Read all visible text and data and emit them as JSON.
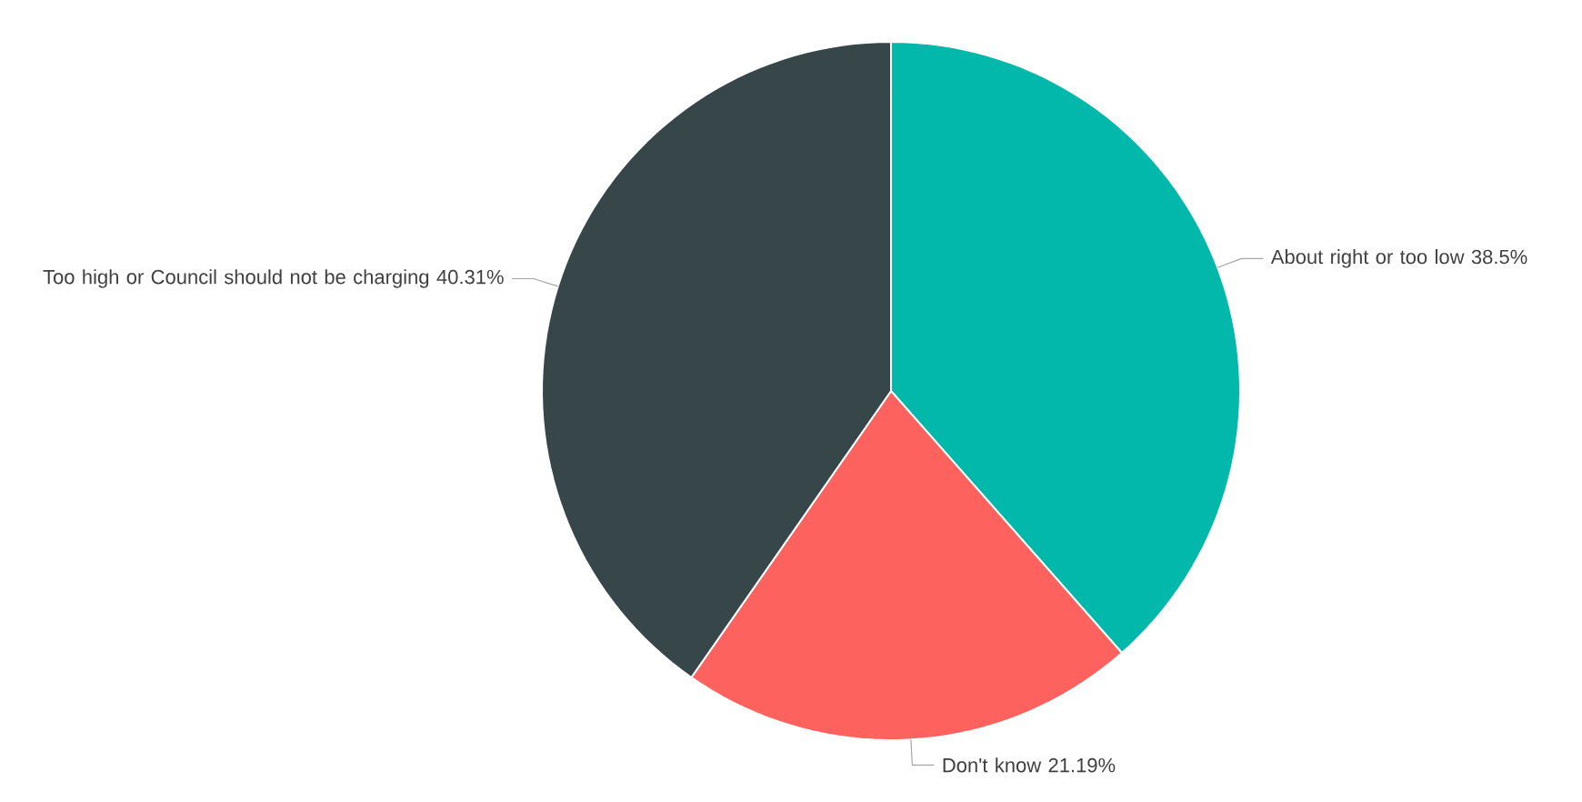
{
  "chart_data": {
    "type": "pie",
    "categories": [
      "About right or too low",
      "Don't know",
      "Too high or Council should not be charging"
    ],
    "values": [
      38.5,
      21.19,
      40.31
    ],
    "value_labels": [
      "38.5%",
      "21.19%",
      "40.31%"
    ],
    "colors": [
      "#01b8aa",
      "#fd625e",
      "#374649"
    ]
  }
}
